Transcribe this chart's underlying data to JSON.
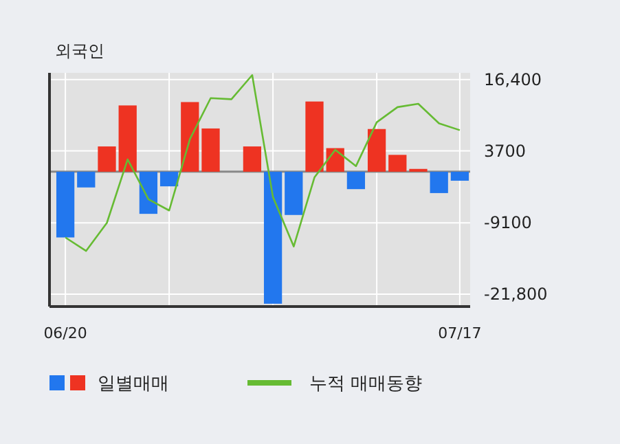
{
  "chart_data": {
    "type": "bar",
    "title": "외국인",
    "categories": [
      "06/20",
      null,
      null,
      null,
      null,
      null,
      null,
      null,
      null,
      null,
      null,
      null,
      null,
      null,
      null,
      null,
      null,
      null,
      null,
      "07/17"
    ],
    "series": [
      {
        "name": "일별매매",
        "colors": [
          "#2277ee",
          "#2277ee",
          "#ee3322",
          "#ee3322",
          "#2277ee",
          "#2277ee",
          "#ee3322",
          "#ee3322",
          "#ee3322",
          "#ee3322",
          "#2277ee",
          "#2277ee",
          "#ee3322",
          "#ee3322",
          "#2277ee",
          "#ee3322",
          "#ee3322",
          "#ee3322",
          "#2277ee",
          "#2277ee"
        ],
        "values": [
          -11700,
          -2800,
          4500,
          11800,
          -7500,
          -2600,
          12400,
          7700,
          0,
          4500,
          -23500,
          -7700,
          12500,
          4200,
          -3100,
          7600,
          3000,
          500,
          -3800,
          -1600
        ]
      },
      {
        "name": "누적 매매동향",
        "type": "line",
        "color": "#66bb33",
        "values": [
          -11700,
          -14100,
          -9100,
          2200,
          -4900,
          -6900,
          5800,
          13100,
          12900,
          17200,
          -4500,
          -13300,
          -1000,
          3900,
          1000,
          8800,
          11500,
          12100,
          8600,
          7400
        ]
      }
    ],
    "ylim": [
      -24000,
      17600
    ],
    "yticks": [
      {
        "value": 16400,
        "label": "16,400"
      },
      3700,
      -9100,
      {
        "value": -21800,
        "label": "-21,800"
      }
    ],
    "ref_lines": [
      {
        "axis": "y",
        "value": 0,
        "color": "#888888"
      }
    ],
    "grid": true,
    "legend": "bottom"
  }
}
